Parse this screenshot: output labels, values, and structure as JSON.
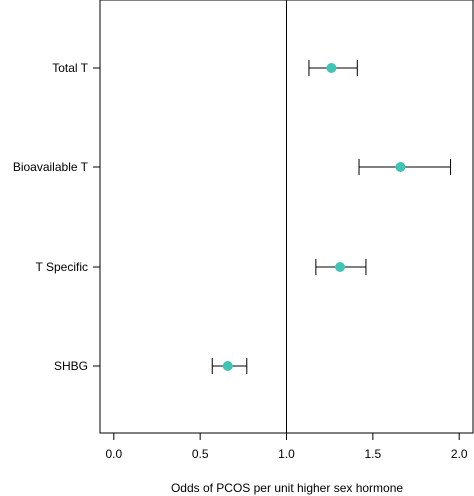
{
  "chart_data": {
    "type": "scatter",
    "subtype": "forest-plot",
    "title": "",
    "xlabel": "Odds of PCOS per unit higher sex hormone",
    "ylabel": "",
    "xlim": [
      -0.08,
      2.08
    ],
    "x_ticks": [
      0.0,
      0.5,
      1.0,
      1.5,
      2.0
    ],
    "x_tick_labels": [
      "0.0",
      "0.5",
      "1.0",
      "1.5",
      "2.0"
    ],
    "reference_line_x": 1.0,
    "categories": [
      "Total T",
      "Bioavailable T",
      "T Specific",
      "SHBG"
    ],
    "estimates": [
      1.26,
      1.66,
      1.31,
      0.66
    ],
    "ci_lower": [
      1.13,
      1.42,
      1.17,
      0.57
    ],
    "ci_upper": [
      1.41,
      1.95,
      1.46,
      0.77
    ],
    "grid": false,
    "legend": "none",
    "point_color": "#40c4b4",
    "line_color": "#000000"
  }
}
